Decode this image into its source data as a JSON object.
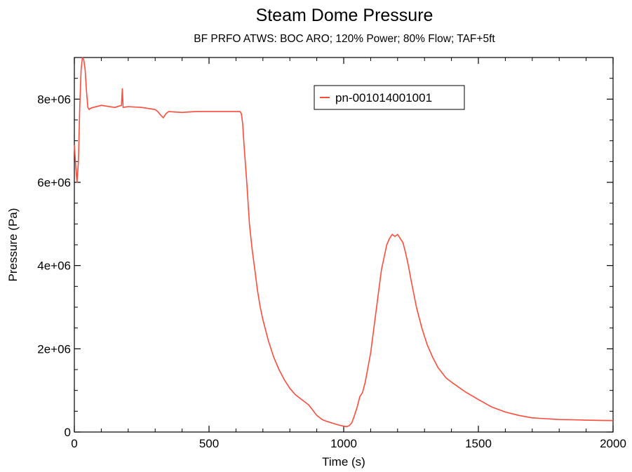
{
  "chart_data": {
    "type": "line",
    "title": "Steam Dome Pressure",
    "subtitle": "BF PRFO ATWS:  BOC ARO;  120% Power;  80% Flow;  TAF+5ft",
    "xlabel": "Time (s)",
    "ylabel": "Pressure (Pa)",
    "xlim": [
      0,
      2000
    ],
    "ylim": [
      0,
      9000000
    ],
    "x_ticks": [
      0,
      500,
      1000,
      1500,
      2000
    ],
    "x_tick_labels": [
      "0",
      "500",
      "1000",
      "1500",
      "2000"
    ],
    "y_ticks": [
      0,
      2000000,
      4000000,
      6000000,
      8000000
    ],
    "y_tick_labels": [
      "0",
      "2e+06",
      "4e+06",
      "6e+06",
      "8e+06"
    ],
    "grid": false,
    "legend_position": "top-right",
    "series": [
      {
        "name": "pn-001014001001",
        "color": "#ff4b3a",
        "x": [
          0,
          5,
          10,
          15,
          20,
          25,
          30,
          35,
          40,
          45,
          50,
          55,
          60,
          70,
          100,
          150,
          175,
          178,
          181,
          200,
          250,
          300,
          310,
          320,
          330,
          340,
          350,
          400,
          450,
          500,
          550,
          600,
          610,
          615,
          620,
          625,
          630,
          640,
          650,
          660,
          670,
          680,
          690,
          700,
          720,
          740,
          760,
          780,
          800,
          820,
          850,
          870,
          880,
          900,
          920,
          940,
          960,
          980,
          1000,
          1010,
          1020,
          1030,
          1040,
          1050,
          1060,
          1070,
          1080,
          1100,
          1120,
          1140,
          1160,
          1170,
          1180,
          1190,
          1200,
          1210,
          1220,
          1230,
          1240,
          1250,
          1270,
          1290,
          1310,
          1330,
          1350,
          1380,
          1400,
          1450,
          1500,
          1550,
          1600,
          1650,
          1700,
          1750,
          1800,
          1850,
          1900,
          1950,
          2000
        ],
        "y": [
          6900000,
          6400000,
          6000000,
          6500000,
          7800000,
          8700000,
          9000000,
          8950000,
          8700000,
          8200000,
          7800000,
          7750000,
          7780000,
          7800000,
          7850000,
          7800000,
          7850000,
          8250000,
          7800000,
          7820000,
          7800000,
          7750000,
          7700000,
          7620000,
          7550000,
          7650000,
          7700000,
          7680000,
          7700000,
          7700000,
          7700000,
          7700000,
          7700000,
          7700000,
          7650000,
          7400000,
          6900000,
          6000000,
          5000000,
          4400000,
          3900000,
          3400000,
          3000000,
          2700000,
          2200000,
          1800000,
          1500000,
          1250000,
          1050000,
          900000,
          750000,
          650000,
          570000,
          400000,
          300000,
          250000,
          210000,
          170000,
          140000,
          130000,
          150000,
          220000,
          400000,
          600000,
          850000,
          950000,
          1200000,
          1900000,
          2900000,
          3900000,
          4500000,
          4650000,
          4750000,
          4700000,
          4750000,
          4650000,
          4550000,
          4300000,
          4000000,
          3650000,
          3000000,
          2500000,
          2100000,
          1800000,
          1550000,
          1300000,
          1200000,
          970000,
          780000,
          600000,
          480000,
          400000,
          340000,
          320000,
          300000,
          295000,
          285000,
          280000,
          275000
        ]
      }
    ]
  }
}
